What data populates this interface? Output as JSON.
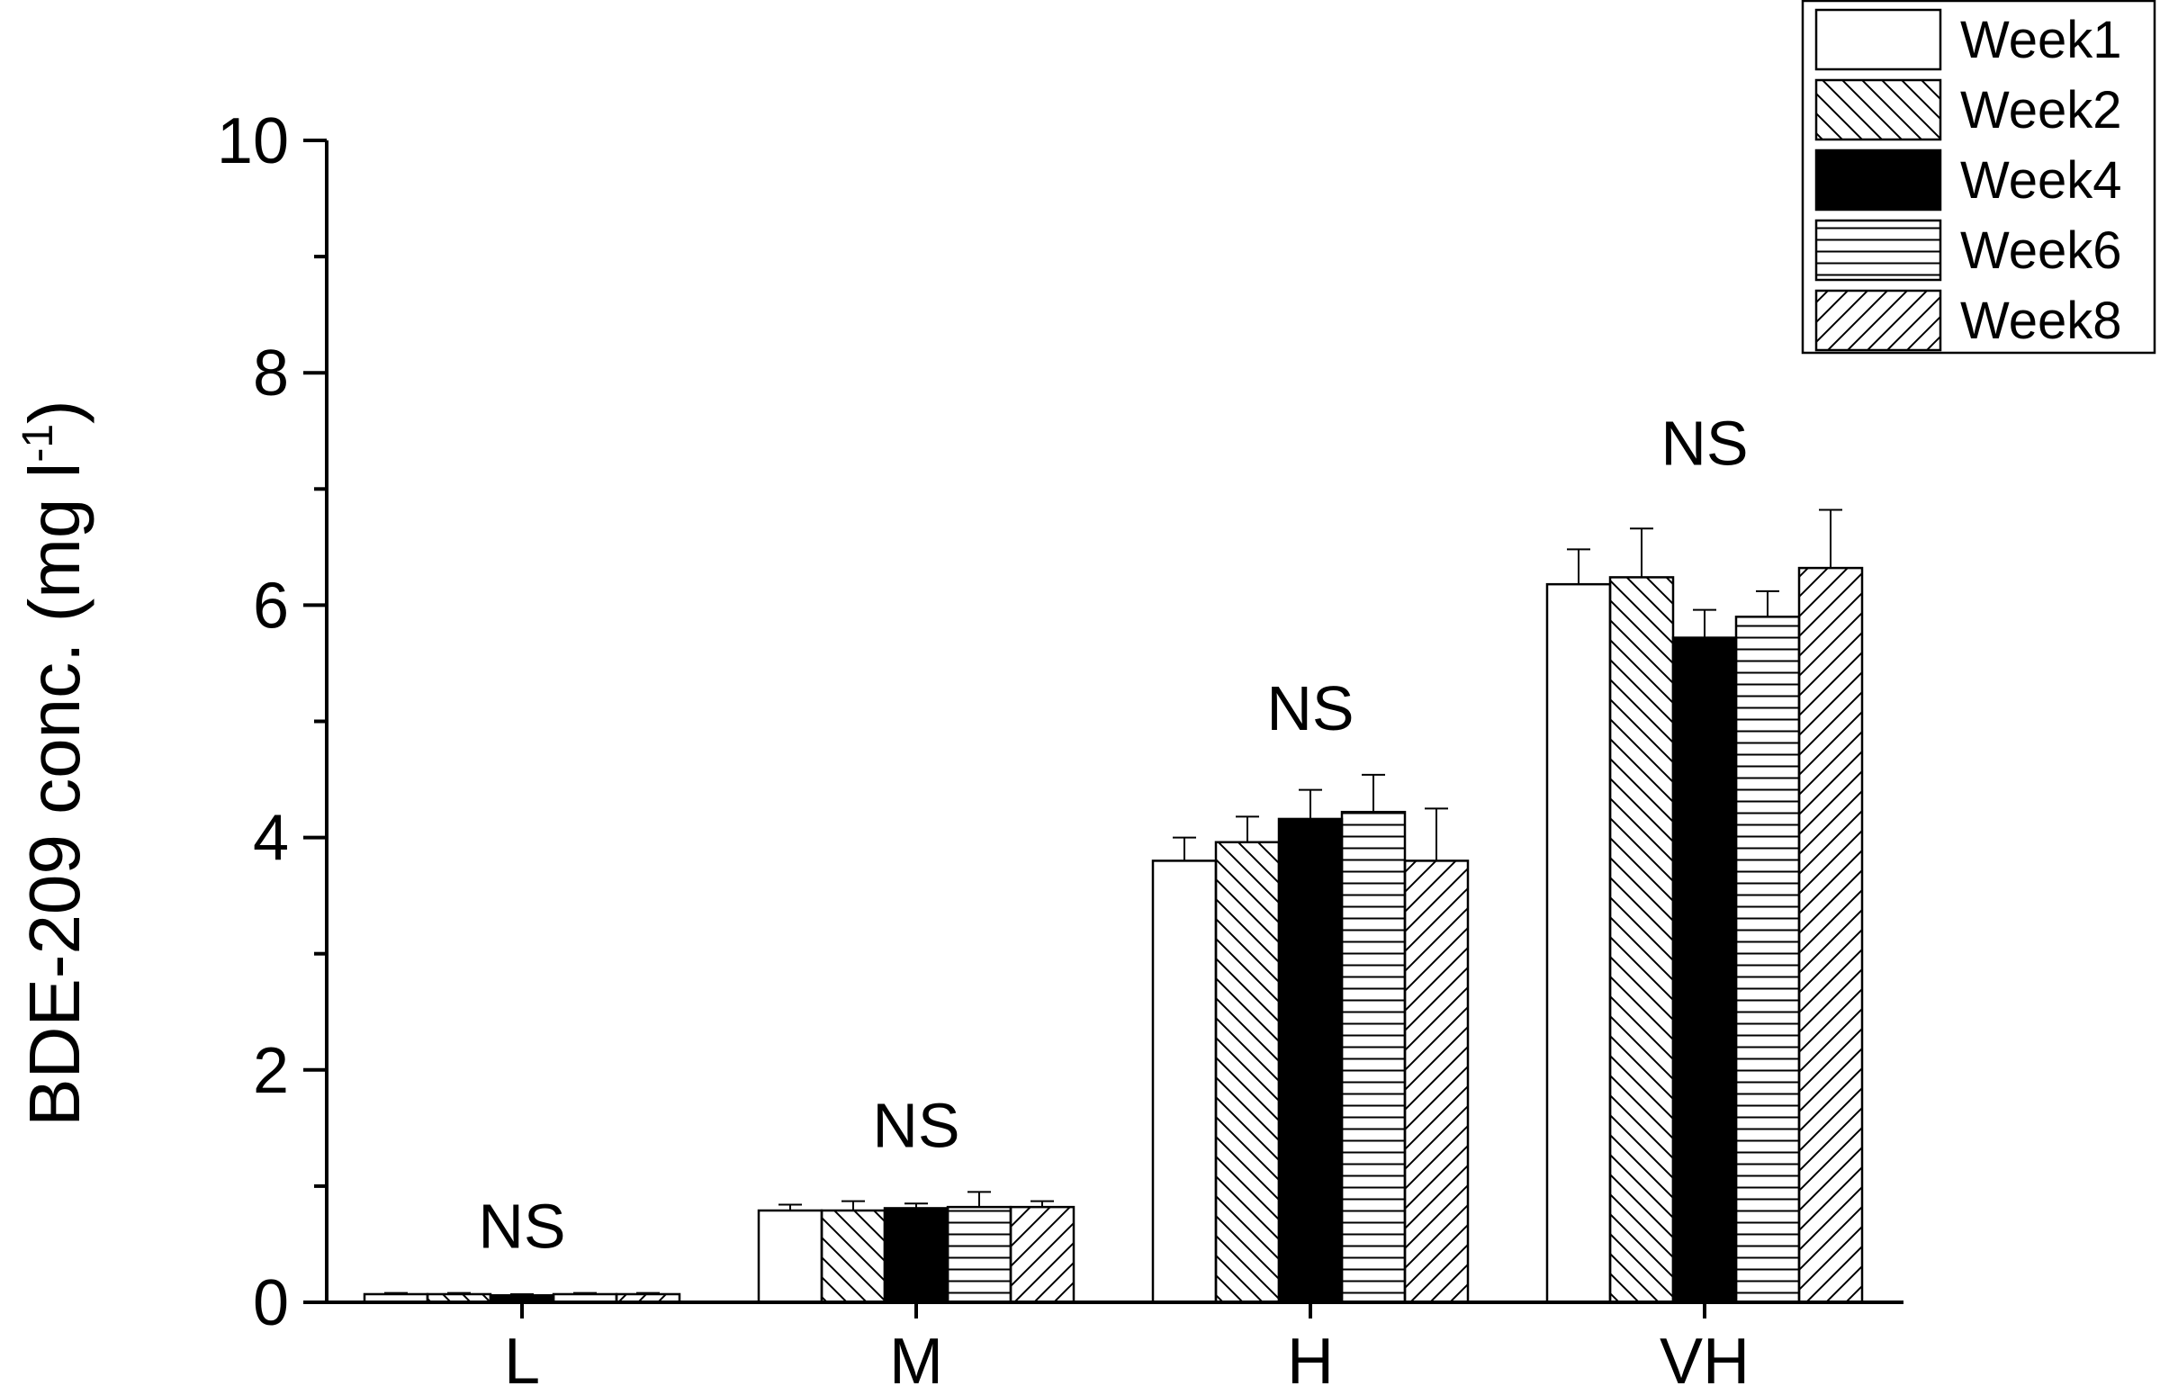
{
  "chart_data": {
    "type": "bar",
    "ylabel_main": "BDE-209 conc.  (mg l",
    "ylabel_sup": "-1",
    "ylabel_close": ")",
    "xlabel": "",
    "ylim": [
      0,
      10
    ],
    "yticks": [
      "0",
      "2",
      "4",
      "6",
      "8",
      "10"
    ],
    "categories": [
      "L",
      "M",
      "H",
      "VH"
    ],
    "annotations": [
      "NS",
      "NS",
      "NS",
      "NS"
    ],
    "series": [
      {
        "name": "Week1",
        "pattern": "none",
        "values": [
          0.07,
          0.79,
          3.8,
          6.18
        ],
        "errors": [
          0.01,
          0.05,
          0.2,
          0.3
        ]
      },
      {
        "name": "Week2",
        "pattern": "backdiag",
        "values": [
          0.07,
          0.79,
          3.96,
          6.24
        ],
        "errors": [
          0.01,
          0.08,
          0.22,
          0.42
        ]
      },
      {
        "name": "Week4",
        "pattern": "solid",
        "values": [
          0.06,
          0.81,
          4.16,
          5.72
        ],
        "errors": [
          0.01,
          0.04,
          0.25,
          0.24
        ]
      },
      {
        "name": "Week6",
        "pattern": "horiz",
        "values": [
          0.07,
          0.82,
          4.22,
          5.9
        ],
        "errors": [
          0.01,
          0.13,
          0.32,
          0.22
        ]
      },
      {
        "name": "Week8",
        "pattern": "fwddiag",
        "values": [
          0.07,
          0.82,
          3.8,
          6.32
        ],
        "errors": [
          0.01,
          0.05,
          0.45,
          0.5
        ]
      }
    ],
    "grid": false,
    "legend_position": "top-right"
  }
}
